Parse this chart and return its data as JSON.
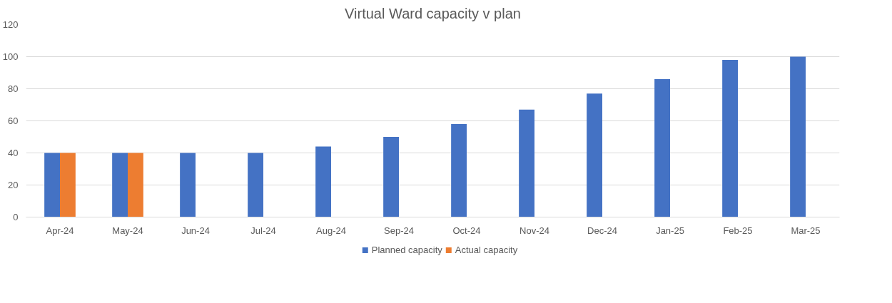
{
  "chart_data": {
    "type": "bar",
    "title": "Virtual Ward capacity v plan",
    "categories": [
      "Apr-24",
      "May-24",
      "Jun-24",
      "Jul-24",
      "Aug-24",
      "Sep-24",
      "Oct-24",
      "Nov-24",
      "Dec-24",
      "Jan-25",
      "Feb-25",
      "Mar-25"
    ],
    "series": [
      {
        "name": "Planned capacity",
        "color": "#4472c4",
        "values": [
          40,
          40,
          40,
          40,
          44,
          50,
          58,
          67,
          77,
          86,
          98,
          100
        ]
      },
      {
        "name": "Actual capacity",
        "color": "#ed7d31",
        "values": [
          40,
          40,
          null,
          null,
          null,
          null,
          null,
          null,
          null,
          null,
          null,
          null
        ]
      }
    ],
    "ylim": [
      0,
      120
    ],
    "yticks": [
      0,
      20,
      40,
      60,
      80,
      100,
      120
    ],
    "grid": "y",
    "legend": "bottom"
  }
}
